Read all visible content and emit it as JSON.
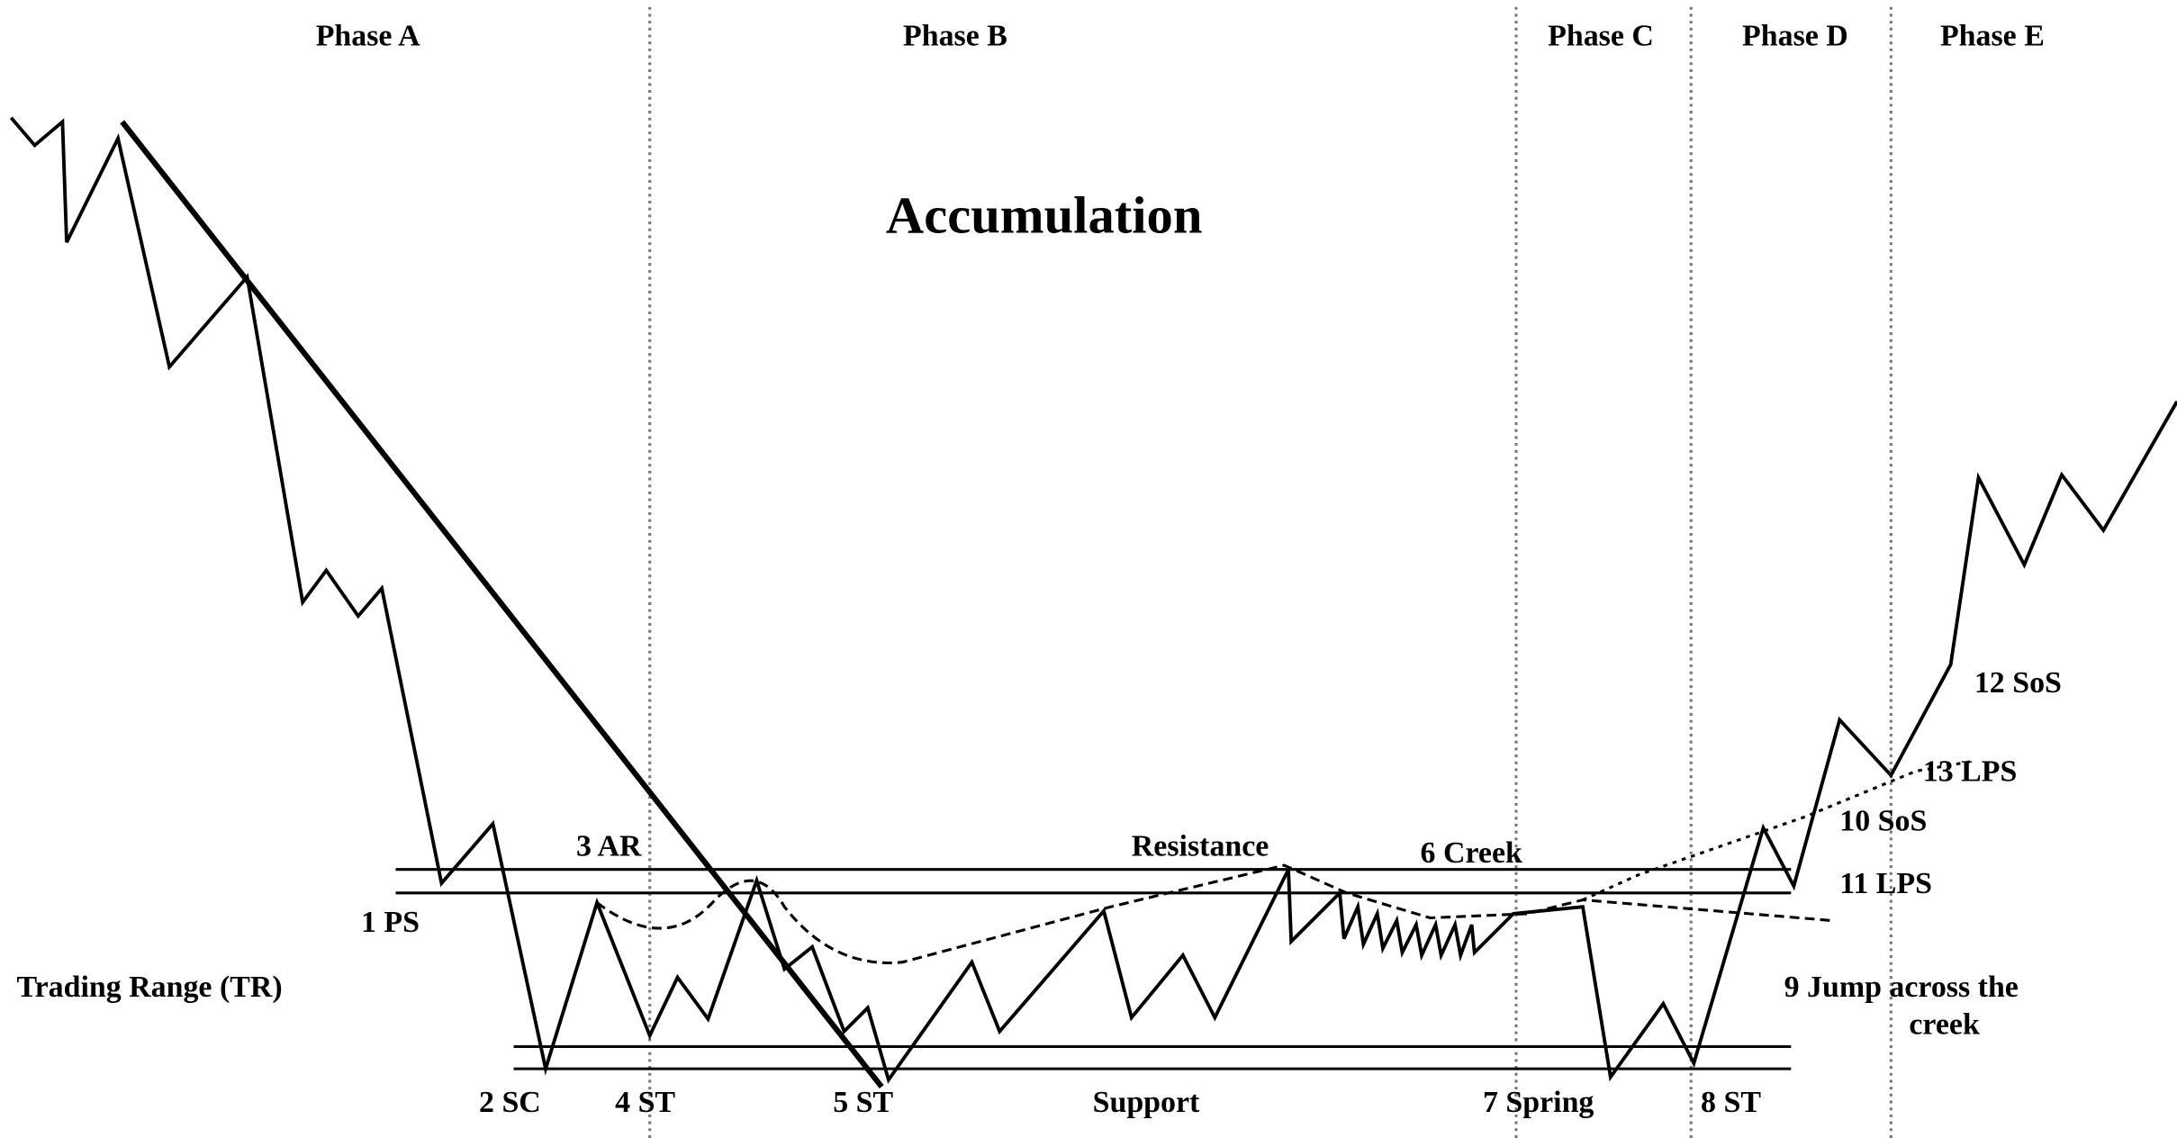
{
  "title": "Accumulation",
  "phases": [
    "Phase A",
    "Phase B",
    "Phase C",
    "Phase D",
    "Phase E"
  ],
  "labels": {
    "ps": "1 PS",
    "sc": "2 SC",
    "ar": "3 AR",
    "st4": "4 ST",
    "st5": "5 ST",
    "creek": "6 Creek",
    "spring": "7 Spring",
    "st8": "8 ST",
    "jump1": "9 Jump across the",
    "jump2": "creek",
    "sos10": "10 SoS",
    "lps11": "11 LPS",
    "sos12": "12 SoS",
    "lps13": "13 LPS",
    "resistance": "Resistance",
    "support": "Support",
    "tr": "Trading Range (TR)"
  }
}
